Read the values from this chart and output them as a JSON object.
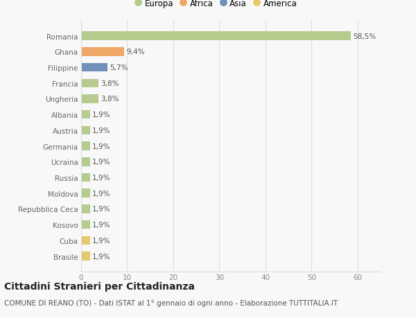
{
  "categories": [
    "Romania",
    "Ghana",
    "Filippine",
    "Francia",
    "Ungheria",
    "Albania",
    "Austria",
    "Germania",
    "Ucraina",
    "Russia",
    "Moldova",
    "Repubblica Ceca",
    "Kosovo",
    "Cuba",
    "Brasile"
  ],
  "values": [
    58.5,
    9.4,
    5.7,
    3.8,
    3.8,
    1.9,
    1.9,
    1.9,
    1.9,
    1.9,
    1.9,
    1.9,
    1.9,
    1.9,
    1.9
  ],
  "labels": [
    "58,5%",
    "9,4%",
    "5,7%",
    "3,8%",
    "3,8%",
    "1,9%",
    "1,9%",
    "1,9%",
    "1,9%",
    "1,9%",
    "1,9%",
    "1,9%",
    "1,9%",
    "1,9%",
    "1,9%"
  ],
  "colors": [
    "#b5cc8e",
    "#f0a868",
    "#7090b8",
    "#b5cc8e",
    "#b5cc8e",
    "#b5cc8e",
    "#b5cc8e",
    "#b5cc8e",
    "#b5cc8e",
    "#b5cc8e",
    "#b5cc8e",
    "#b5cc8e",
    "#b5cc8e",
    "#e8c86a",
    "#e8c86a"
  ],
  "legend_labels": [
    "Europa",
    "Africa",
    "Asia",
    "America"
  ],
  "legend_colors": [
    "#b5cc8e",
    "#f0a868",
    "#7090b8",
    "#e8c86a"
  ],
  "title": "Cittadini Stranieri per Cittadinanza",
  "subtitle": "COMUNE DI REANO (TO) - Dati ISTAT al 1° gennaio di ogni anno - Elaborazione TUTTITALIA.IT",
  "xlim": [
    0,
    65
  ],
  "xticks": [
    0,
    10,
    20,
    30,
    40,
    50,
    60
  ],
  "background_color": "#f8f8f8",
  "grid_color": "#dddddd",
  "bar_height": 0.55,
  "label_fontsize": 7.5,
  "tick_fontsize": 7.5,
  "legend_fontsize": 8.5,
  "title_fontsize": 10,
  "subtitle_fontsize": 7.5
}
